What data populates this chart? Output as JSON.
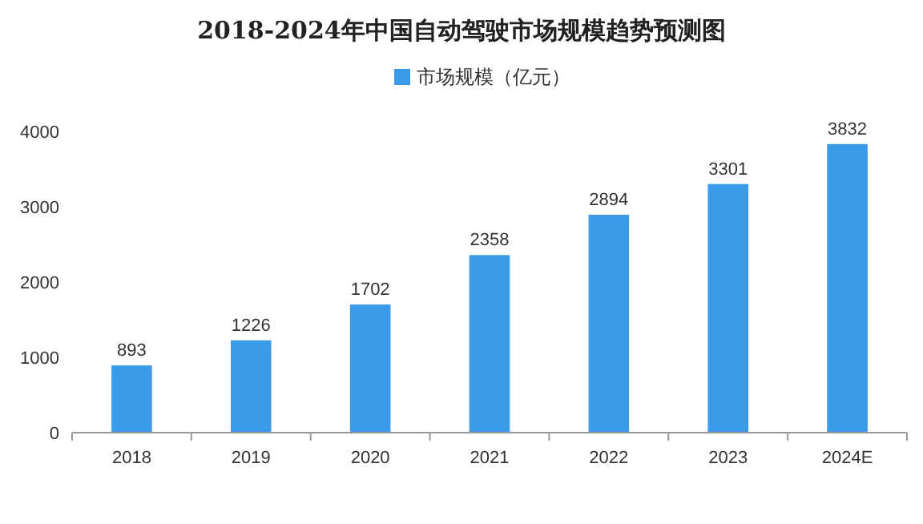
{
  "chart_data": {
    "type": "bar",
    "title": "2018-2024年中国自动驾驶市场规模趋势预测图",
    "categories": [
      "2018",
      "2019",
      "2020",
      "2021",
      "2022",
      "2023",
      "2024E"
    ],
    "series": [
      {
        "name": "市场规模（亿元）",
        "color": "#3c9be8",
        "values": [
          893,
          1226,
          1702,
          2358,
          2894,
          3301,
          3832
        ]
      }
    ],
    "ylim": [
      0,
      4000
    ],
    "yticks": [
      0,
      1000,
      2000,
      3000,
      4000
    ],
    "grid": false,
    "legend": "top",
    "data_labels": true
  }
}
